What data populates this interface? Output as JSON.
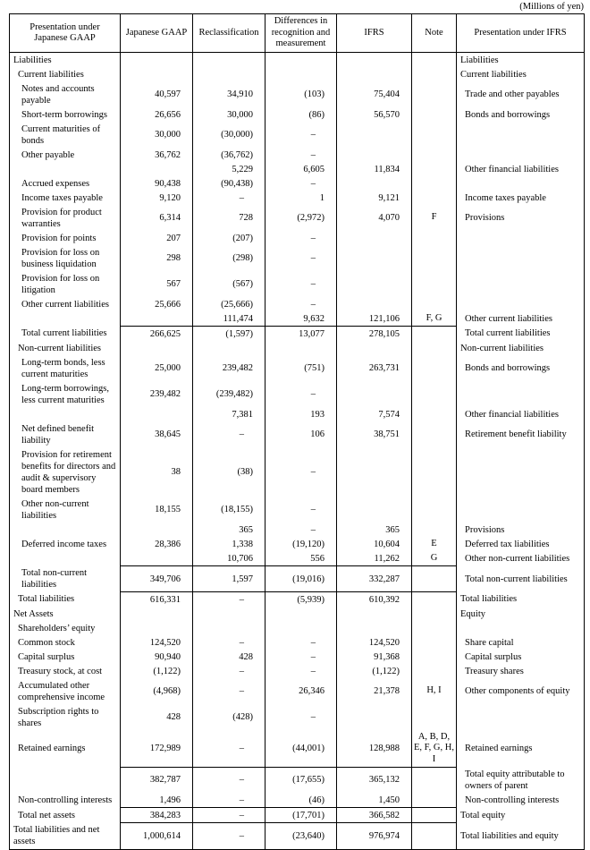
{
  "caption": "(Millions of yen)",
  "table": {
    "headers": [
      "Presentation under\nJapanese GAAP",
      "Japanese GAAP",
      "Reclassification",
      "Differences in\nrecognition and\nmeasurement",
      "IFRS",
      "Note",
      "Presentation under IFRS"
    ],
    "rows": [
      {
        "jp_label": "Liabilities",
        "jp_indent": 0,
        "jgaap": "",
        "reclass": "",
        "diff": "",
        "ifrs": "",
        "note": "",
        "ifrs_label": "Liabilities",
        "ifrs_indent": 0,
        "total_line": false
      },
      {
        "jp_label": "Current liabilities",
        "jp_indent": 1,
        "jgaap": "",
        "reclass": "",
        "diff": "",
        "ifrs": "",
        "note": "",
        "ifrs_label": "Current liabilities",
        "ifrs_indent": 0,
        "total_line": false
      },
      {
        "jp_label": "Notes and accounts payable",
        "jp_indent": 2,
        "jgaap": "40,597",
        "reclass": "34,910",
        "diff": "(103)",
        "ifrs": "75,404",
        "note": "",
        "ifrs_label": "Trade and other payables",
        "ifrs_indent": 1,
        "total_line": false
      },
      {
        "jp_label": "Short-term borrowings",
        "jp_indent": 2,
        "jgaap": "26,656",
        "reclass": "30,000",
        "diff": "(86)",
        "ifrs": "56,570",
        "note": "",
        "ifrs_label": "Bonds and borrowings",
        "ifrs_indent": 1,
        "total_line": false
      },
      {
        "jp_label": "Current maturities of bonds",
        "jp_indent": 2,
        "jgaap": "30,000",
        "reclass": "(30,000)",
        "diff": "–",
        "ifrs": "",
        "note": "",
        "ifrs_label": "",
        "ifrs_indent": 1,
        "total_line": false
      },
      {
        "jp_label": "Other payable",
        "jp_indent": 2,
        "jgaap": "36,762",
        "reclass": "(36,762)",
        "diff": "–",
        "ifrs": "",
        "note": "",
        "ifrs_label": "",
        "ifrs_indent": 1,
        "total_line": false
      },
      {
        "jp_label": "",
        "jp_indent": 2,
        "jgaap": "",
        "reclass": "5,229",
        "diff": "6,605",
        "ifrs": "11,834",
        "note": "",
        "ifrs_label": "Other financial liabilities",
        "ifrs_indent": 1,
        "total_line": false
      },
      {
        "jp_label": "Accrued expenses",
        "jp_indent": 2,
        "jgaap": "90,438",
        "reclass": "(90,438)",
        "diff": "–",
        "ifrs": "",
        "note": "",
        "ifrs_label": "",
        "ifrs_indent": 1,
        "total_line": false
      },
      {
        "jp_label": "Income taxes payable",
        "jp_indent": 2,
        "jgaap": "9,120",
        "reclass": "–",
        "diff": "1",
        "ifrs": "9,121",
        "note": "",
        "ifrs_label": "Income taxes payable",
        "ifrs_indent": 1,
        "total_line": false
      },
      {
        "jp_label": "Provision for product warranties",
        "jp_indent": 2,
        "jgaap": "6,314",
        "reclass": "728",
        "diff": "(2,972)",
        "ifrs": "4,070",
        "note": "F",
        "ifrs_label": "Provisions",
        "ifrs_indent": 1,
        "total_line": false
      },
      {
        "jp_label": "Provision for points",
        "jp_indent": 2,
        "jgaap": "207",
        "reclass": "(207)",
        "diff": "–",
        "ifrs": "",
        "note": "",
        "ifrs_label": "",
        "ifrs_indent": 1,
        "total_line": false
      },
      {
        "jp_label": "Provision for loss on business liquidation",
        "jp_indent": 2,
        "jgaap": "298",
        "reclass": "(298)",
        "diff": "–",
        "ifrs": "",
        "note": "",
        "ifrs_label": "",
        "ifrs_indent": 1,
        "total_line": false
      },
      {
        "jp_label": "Provision for loss on litigation",
        "jp_indent": 2,
        "jgaap": "567",
        "reclass": "(567)",
        "diff": "–",
        "ifrs": "",
        "note": "",
        "ifrs_label": "",
        "ifrs_indent": 1,
        "total_line": false
      },
      {
        "jp_label": "Other current liabilities",
        "jp_indent": 2,
        "jgaap": "25,666",
        "reclass": "(25,666)",
        "diff": "–",
        "ifrs": "",
        "note": "",
        "ifrs_label": "",
        "ifrs_indent": 1,
        "total_line": false
      },
      {
        "jp_label": "",
        "jp_indent": 2,
        "jgaap": "",
        "reclass": "111,474",
        "diff": "9,632",
        "ifrs": "121,106",
        "note": "F, G",
        "ifrs_label": "Other current liabilities",
        "ifrs_indent": 1,
        "total_line": false
      },
      {
        "jp_label": "Total current liabilities",
        "jp_indent": 2,
        "jgaap": "266,625",
        "reclass": "(1,597)",
        "diff": "13,077",
        "ifrs": "278,105",
        "note": "",
        "ifrs_label": "Total current liabilities",
        "ifrs_indent": 1,
        "total_line": true
      },
      {
        "jp_label": "Non-current liabilities",
        "jp_indent": 1,
        "jgaap": "",
        "reclass": "",
        "diff": "",
        "ifrs": "",
        "note": "",
        "ifrs_label": "Non-current liabilities",
        "ifrs_indent": 0,
        "total_line": false
      },
      {
        "jp_label": "Long-term bonds, less current maturities",
        "jp_indent": 2,
        "jgaap": "25,000",
        "reclass": "239,482",
        "diff": "(751)",
        "ifrs": "263,731",
        "note": "",
        "ifrs_label": "Bonds and borrowings",
        "ifrs_indent": 1,
        "total_line": false
      },
      {
        "jp_label": "Long-term borrowings, less current maturities",
        "jp_indent": 2,
        "jgaap": "239,482",
        "reclass": "(239,482)",
        "diff": "–",
        "ifrs": "",
        "note": "",
        "ifrs_label": "",
        "ifrs_indent": 1,
        "total_line": false
      },
      {
        "jp_label": "",
        "jp_indent": 2,
        "jgaap": "",
        "reclass": "7,381",
        "diff": "193",
        "ifrs": "7,574",
        "note": "",
        "ifrs_label": "Other financial liabilities",
        "ifrs_indent": 1,
        "total_line": false
      },
      {
        "jp_label": "Net defined benefit liability",
        "jp_indent": 2,
        "jgaap": "38,645",
        "reclass": "–",
        "diff": "106",
        "ifrs": "38,751",
        "note": "",
        "ifrs_label": "Retirement benefit liability",
        "ifrs_indent": 1,
        "total_line": false
      },
      {
        "jp_label": "Provision for retirement benefits for directors and audit & supervisory board members",
        "jp_indent": 2,
        "jgaap": "38",
        "reclass": "(38)",
        "diff": "–",
        "ifrs": "",
        "note": "",
        "ifrs_label": "",
        "ifrs_indent": 1,
        "total_line": false
      },
      {
        "jp_label": "Other non-current liabilities",
        "jp_indent": 2,
        "jgaap": "18,155",
        "reclass": "(18,155)",
        "diff": "–",
        "ifrs": "",
        "note": "",
        "ifrs_label": "",
        "ifrs_indent": 1,
        "total_line": false
      },
      {
        "jp_label": "",
        "jp_indent": 2,
        "jgaap": "",
        "reclass": "365",
        "diff": "–",
        "ifrs": "365",
        "note": "",
        "ifrs_label": "Provisions",
        "ifrs_indent": 1,
        "total_line": false
      },
      {
        "jp_label": "Deferred income taxes",
        "jp_indent": 2,
        "jgaap": "28,386",
        "reclass": "1,338",
        "diff": "(19,120)",
        "ifrs": "10,604",
        "note": "E",
        "ifrs_label": "Deferred tax liabilities",
        "ifrs_indent": 1,
        "total_line": false
      },
      {
        "jp_label": "",
        "jp_indent": 2,
        "jgaap": "",
        "reclass": "10,706",
        "diff": "556",
        "ifrs": "11,262",
        "note": "G",
        "ifrs_label": "Other non-current liabilities",
        "ifrs_indent": 1,
        "total_line": false
      },
      {
        "jp_label": "Total non-current liabilities",
        "jp_indent": 2,
        "jgaap": "349,706",
        "reclass": "1,597",
        "diff": "(19,016)",
        "ifrs": "332,287",
        "note": "",
        "ifrs_label": "Total non-current liabilities",
        "ifrs_indent": 1,
        "total_line": true
      },
      {
        "jp_label": "Total liabilities",
        "jp_indent": 1,
        "jgaap": "616,331",
        "reclass": "–",
        "diff": "(5,939)",
        "ifrs": "610,392",
        "note": "",
        "ifrs_label": "Total liabilities",
        "ifrs_indent": 0,
        "total_line": true
      },
      {
        "jp_label": "Net Assets",
        "jp_indent": 0,
        "jgaap": "",
        "reclass": "",
        "diff": "",
        "ifrs": "",
        "note": "",
        "ifrs_label": "Equity",
        "ifrs_indent": 0,
        "total_line": false
      },
      {
        "jp_label": "Shareholders’ equity",
        "jp_indent": 1,
        "jgaap": "",
        "reclass": "",
        "diff": "",
        "ifrs": "",
        "note": "",
        "ifrs_label": "",
        "ifrs_indent": 0,
        "total_line": false
      },
      {
        "jp_label": "Common stock",
        "jp_indent": 1,
        "jgaap": "124,520",
        "reclass": "–",
        "diff": "–",
        "ifrs": "124,520",
        "note": "",
        "ifrs_label": "Share capital",
        "ifrs_indent": 1,
        "total_line": false
      },
      {
        "jp_label": "Capital surplus",
        "jp_indent": 1,
        "jgaap": "90,940",
        "reclass": "428",
        "diff": "–",
        "ifrs": "91,368",
        "note": "",
        "ifrs_label": "Capital surplus",
        "ifrs_indent": 1,
        "total_line": false
      },
      {
        "jp_label": "Treasury stock, at cost",
        "jp_indent": 1,
        "jgaap": "(1,122)",
        "reclass": "–",
        "diff": "–",
        "ifrs": "(1,122)",
        "note": "",
        "ifrs_label": "Treasury shares",
        "ifrs_indent": 1,
        "total_line": false
      },
      {
        "jp_label": "Accumulated other comprehensive income",
        "jp_indent": 1,
        "jgaap": "(4,968)",
        "reclass": "–",
        "diff": "26,346",
        "ifrs": "21,378",
        "note": "H, I",
        "ifrs_label": "Other components of equity",
        "ifrs_indent": 1,
        "total_line": false
      },
      {
        "jp_label": "Subscription rights to shares",
        "jp_indent": 1,
        "jgaap": "428",
        "reclass": "(428)",
        "diff": "–",
        "ifrs": "",
        "note": "",
        "ifrs_label": "",
        "ifrs_indent": 1,
        "total_line": false
      },
      {
        "jp_label": "Retained earnings",
        "jp_indent": 1,
        "jgaap": "172,989",
        "reclass": "–",
        "diff": "(44,001)",
        "ifrs": "128,988",
        "note": "A, B, D, E, F, G, H, I",
        "ifrs_label": "Retained earnings",
        "ifrs_indent": 1,
        "total_line": false
      },
      {
        "jp_label": "",
        "jp_indent": 1,
        "jgaap": "382,787",
        "reclass": "–",
        "diff": "(17,655)",
        "ifrs": "365,132",
        "note": "",
        "ifrs_label": "Total equity attributable to owners of parent",
        "ifrs_indent": 1,
        "total_line": true
      },
      {
        "jp_label": "Non-controlling interests",
        "jp_indent": 1,
        "jgaap": "1,496",
        "reclass": "–",
        "diff": "(46)",
        "ifrs": "1,450",
        "note": "",
        "ifrs_label": "Non-controlling interests",
        "ifrs_indent": 1,
        "total_line": false
      },
      {
        "jp_label": "Total net assets",
        "jp_indent": 1,
        "jgaap": "384,283",
        "reclass": "–",
        "diff": "(17,701)",
        "ifrs": "366,582",
        "note": "",
        "ifrs_label": "Total equity",
        "ifrs_indent": 0,
        "total_line": true
      },
      {
        "jp_label": "Total liabilities and net assets",
        "jp_indent": 0,
        "jgaap": "1,000,614",
        "reclass": "–",
        "diff": "(23,640)",
        "ifrs": "976,974",
        "note": "",
        "ifrs_label": "Total liabilities and equity",
        "ifrs_indent": 0,
        "total_line": true
      }
    ]
  }
}
